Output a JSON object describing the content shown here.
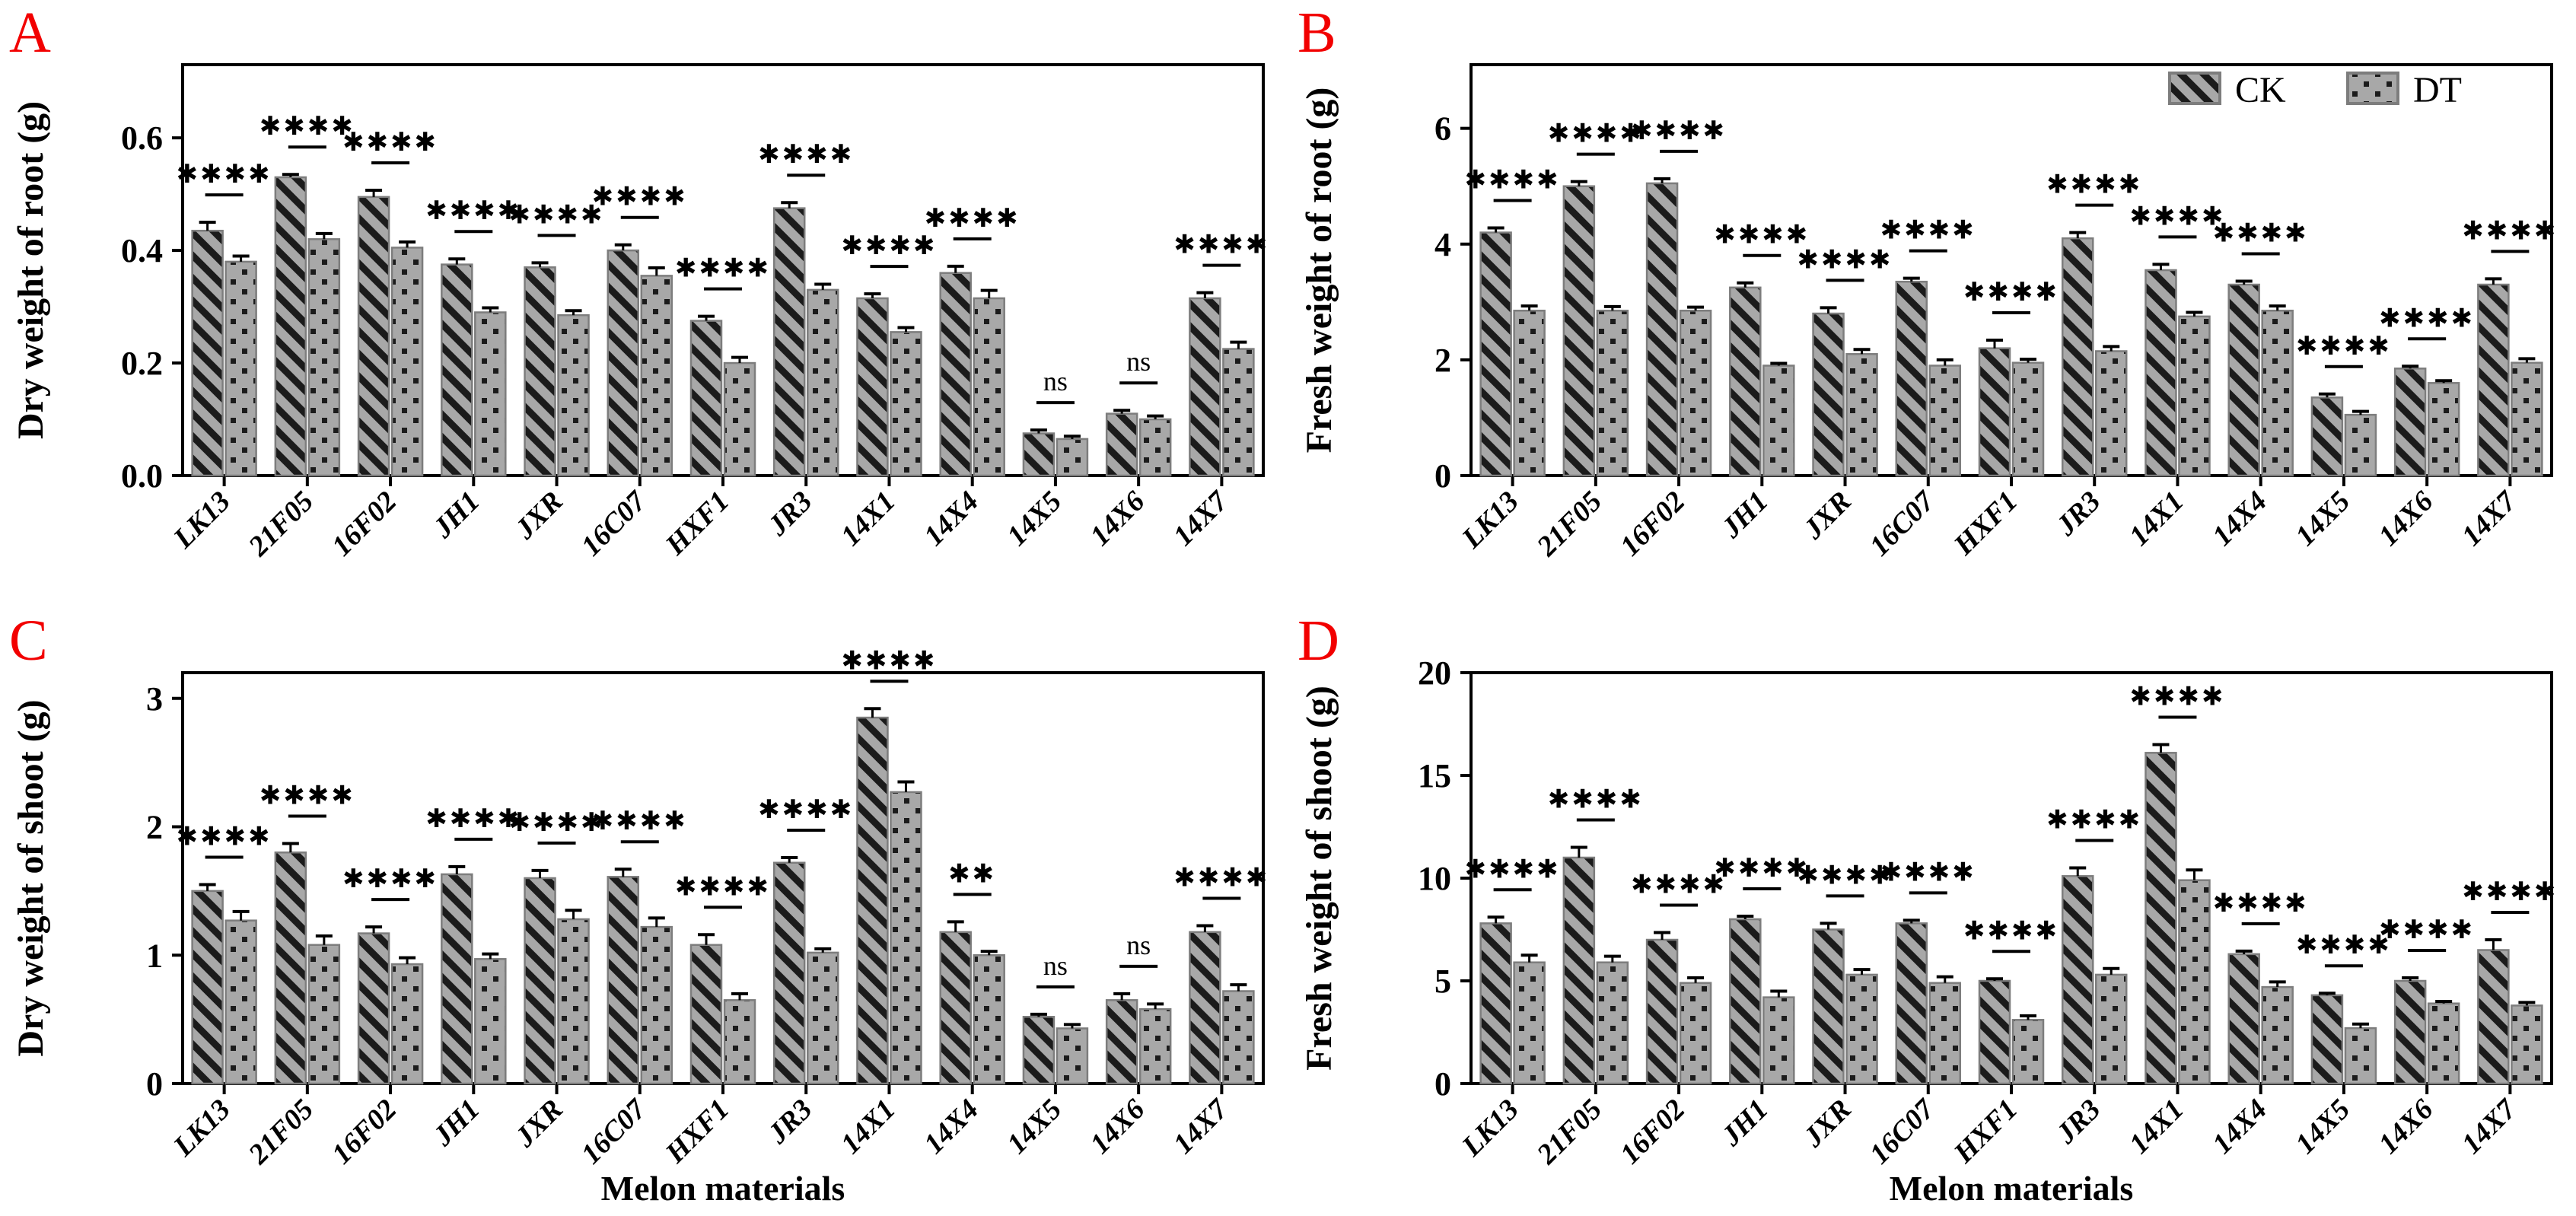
{
  "legend": {
    "items": [
      {
        "label": "CK"
      },
      {
        "label": "DT"
      }
    ]
  },
  "shared_xlabel": "Melon materials",
  "colors": {
    "bar_fill": "#a8a8a8",
    "bar_border": "#7d7d7d",
    "pattern_ink": "#1b1b1b",
    "axis": "#000000",
    "panel_letter": "#f20000"
  },
  "chart_data": [
    {
      "type": "bar",
      "label": "A",
      "ylabel": "Dry weight of root (g)",
      "xlabel": "",
      "legend": false,
      "categories": [
        "LK13",
        "21F05",
        "16F02",
        "JH1",
        "JXR",
        "16C07",
        "HXF1",
        "JR3",
        "14X1",
        "14X4",
        "14X5",
        "14X6",
        "14X7"
      ],
      "yticks": [
        0,
        0.2,
        0.4,
        0.6
      ],
      "ytick_labels": [
        "0.0",
        "0.2",
        "0.4",
        "0.6"
      ],
      "ylim": [
        0,
        0.73
      ],
      "series": [
        {
          "name": "CK",
          "values": [
            0.435,
            0.53,
            0.495,
            0.375,
            0.37,
            0.4,
            0.275,
            0.475,
            0.315,
            0.36,
            0.075,
            0.11,
            0.315
          ],
          "errors": [
            0.015,
            0.005,
            0.012,
            0.01,
            0.008,
            0.01,
            0.008,
            0.01,
            0.008,
            0.012,
            0.006,
            0.006,
            0.01
          ]
        },
        {
          "name": "DT",
          "values": [
            0.38,
            0.42,
            0.405,
            0.29,
            0.285,
            0.355,
            0.2,
            0.33,
            0.255,
            0.315,
            0.065,
            0.1,
            0.225
          ],
          "errors": [
            0.01,
            0.01,
            0.01,
            0.008,
            0.008,
            0.014,
            0.01,
            0.01,
            0.008,
            0.014,
            0.005,
            0.006,
            0.012
          ]
        }
      ],
      "significance": [
        "****",
        "****",
        "****",
        "****",
        "****",
        "****",
        "****",
        "****",
        "****",
        "****",
        "ns",
        "ns",
        "****"
      ]
    },
    {
      "type": "bar",
      "label": "B",
      "ylabel": "Fresh weight of root (g)",
      "xlabel": "",
      "legend": true,
      "categories": [
        "LK13",
        "21F05",
        "16F02",
        "JH1",
        "JXR",
        "16C07",
        "HXF1",
        "JR3",
        "14X1",
        "14X4",
        "14X5",
        "14X6",
        "14X7"
      ],
      "yticks": [
        0,
        2,
        4,
        6
      ],
      "ytick_labels": [
        "0",
        "2",
        "4",
        "6"
      ],
      "ylim": [
        0,
        7.1
      ],
      "series": [
        {
          "name": "CK",
          "values": [
            4.2,
            5.0,
            5.05,
            3.25,
            2.8,
            3.35,
            2.2,
            4.1,
            3.55,
            3.3,
            1.35,
            1.85,
            3.3
          ],
          "errors": [
            0.08,
            0.08,
            0.08,
            0.08,
            0.1,
            0.06,
            0.14,
            0.1,
            0.1,
            0.06,
            0.06,
            0.04,
            0.1
          ]
        },
        {
          "name": "DT",
          "values": [
            2.85,
            2.85,
            2.85,
            1.9,
            2.1,
            1.9,
            1.95,
            2.15,
            2.75,
            2.85,
            1.05,
            1.6,
            1.95
          ],
          "errors": [
            0.08,
            0.07,
            0.06,
            0.04,
            0.08,
            0.1,
            0.06,
            0.08,
            0.07,
            0.08,
            0.06,
            0.04,
            0.07
          ]
        }
      ],
      "significance": [
        "****",
        "****",
        "****",
        "****",
        "****",
        "****",
        "****",
        "****",
        "****",
        "****",
        "****",
        "****",
        "****"
      ]
    },
    {
      "type": "bar",
      "label": "C",
      "ylabel": "Dry weight of shoot (g)",
      "xlabel": "Melon materials",
      "legend": false,
      "categories": [
        "LK13",
        "21F05",
        "16F02",
        "JH1",
        "JXR",
        "16C07",
        "HXF1",
        "JR3",
        "14X1",
        "14X4",
        "14X5",
        "14X6",
        "14X7"
      ],
      "yticks": [
        0,
        1,
        2,
        3
      ],
      "ytick_labels": [
        "0",
        "1",
        "2",
        "3"
      ],
      "ylim": [
        0,
        3.2
      ],
      "series": [
        {
          "name": "CK",
          "values": [
            1.5,
            1.8,
            1.17,
            1.63,
            1.6,
            1.61,
            1.08,
            1.72,
            2.85,
            1.18,
            0.52,
            0.65,
            1.18
          ],
          "errors": [
            0.05,
            0.07,
            0.05,
            0.06,
            0.06,
            0.06,
            0.08,
            0.04,
            0.07,
            0.08,
            0.02,
            0.05,
            0.05
          ]
        },
        {
          "name": "DT",
          "values": [
            1.27,
            1.08,
            0.93,
            0.97,
            1.28,
            1.22,
            0.65,
            1.02,
            2.27,
            1.0,
            0.43,
            0.58,
            0.72
          ],
          "errors": [
            0.07,
            0.07,
            0.05,
            0.04,
            0.07,
            0.07,
            0.05,
            0.03,
            0.08,
            0.03,
            0.03,
            0.04,
            0.05
          ]
        }
      ],
      "significance": [
        "****",
        "****",
        "****",
        "****",
        "****",
        "****",
        "****",
        "****",
        "****",
        "**",
        "ns",
        "ns",
        "****"
      ]
    },
    {
      "type": "bar",
      "label": "D",
      "ylabel": "Fresh weight of shoot (g)",
      "xlabel": "Melon materials",
      "legend": false,
      "categories": [
        "LK13",
        "21F05",
        "16F02",
        "JH1",
        "JXR",
        "16C07",
        "HXF1",
        "JR3",
        "14X1",
        "14X4",
        "14X5",
        "14X6",
        "14X7"
      ],
      "yticks": [
        0,
        5,
        10,
        15,
        20
      ],
      "ytick_labels": [
        "0",
        "5",
        "10",
        "15",
        "20"
      ],
      "ylim": [
        0,
        20
      ],
      "series": [
        {
          "name": "CK",
          "values": [
            7.8,
            11.0,
            7.0,
            8.0,
            7.5,
            7.8,
            5.0,
            10.1,
            16.1,
            6.3,
            4.3,
            5.0,
            6.5
          ],
          "errors": [
            0.3,
            0.5,
            0.35,
            0.15,
            0.3,
            0.15,
            0.1,
            0.4,
            0.4,
            0.15,
            0.1,
            0.15,
            0.5
          ]
        },
        {
          "name": "DT",
          "values": [
            5.9,
            5.9,
            4.9,
            4.2,
            5.3,
            4.9,
            3.1,
            5.3,
            9.9,
            4.7,
            2.7,
            3.9,
            3.8
          ],
          "errors": [
            0.35,
            0.3,
            0.25,
            0.3,
            0.25,
            0.3,
            0.2,
            0.3,
            0.5,
            0.25,
            0.2,
            0.1,
            0.15
          ]
        }
      ],
      "significance": [
        "****",
        "****",
        "****",
        "****",
        "****",
        "****",
        "****",
        "****",
        "****",
        "****",
        "****",
        "****",
        "****"
      ]
    }
  ]
}
